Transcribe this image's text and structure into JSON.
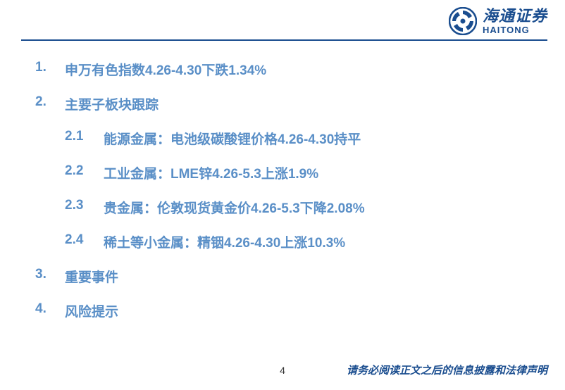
{
  "colors": {
    "brand_blue": "#1a4d8f",
    "text_blue": "#5a8fc7",
    "line_blue": "#1a4d8f",
    "disclaimer_blue": "#1a4d8f",
    "page_text": "#333333",
    "background": "#ffffff"
  },
  "logo": {
    "chinese": "海通证券",
    "english": "HAITONG"
  },
  "toc": {
    "items": [
      {
        "number": "1.",
        "text": "申万有色指数4.26-4.30下跌1.34%",
        "subs": []
      },
      {
        "number": "2.",
        "text": "主要子板块跟踪",
        "subs": [
          {
            "number": "2.1",
            "text": "能源金属：电池级碳酸锂价格4.26-4.30持平"
          },
          {
            "number": "2.2",
            "text": "工业金属：LME锌4.26-5.3上涨1.9%"
          },
          {
            "number": "2.3",
            "text": "贵金属：伦敦现货黄金价4.26-5.3下降2.08%"
          },
          {
            "number": "2.4",
            "text": "稀土等小金属：精铟4.26-4.30上涨10.3%"
          }
        ]
      },
      {
        "number": "3.",
        "text": "重要事件",
        "subs": []
      },
      {
        "number": "4.",
        "text": "风险提示",
        "subs": []
      }
    ]
  },
  "footer": {
    "page_number": "4",
    "disclaimer": "请务必阅读正文之后的信息披露和法律声明"
  }
}
